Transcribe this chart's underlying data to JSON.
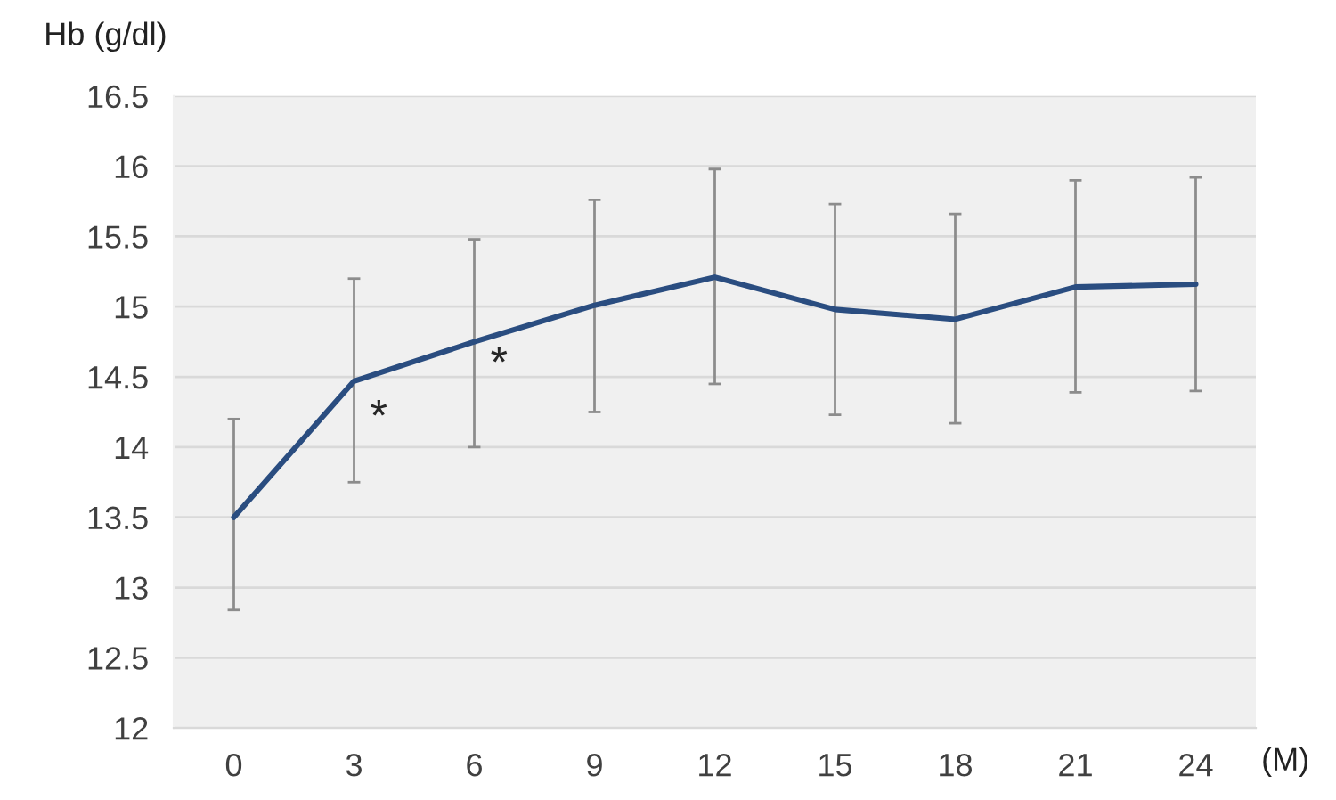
{
  "chart_data": {
    "type": "line",
    "ylabel": "Hb (g/dl)",
    "xlabel": "(M)",
    "categories": [
      "0",
      "3",
      "6",
      "9",
      "12",
      "15",
      "18",
      "21",
      "24"
    ],
    "series": [
      {
        "color": "#2a4d80",
        "values": [
          13.5,
          14.47,
          14.75,
          15.01,
          15.21,
          14.98,
          14.91,
          15.14,
          15.16
        ],
        "errors": [
          [
            12.84,
            14.2
          ],
          [
            13.75,
            15.2
          ],
          [
            14.0,
            15.48
          ],
          [
            14.25,
            15.76
          ],
          [
            14.45,
            15.98
          ],
          [
            14.23,
            15.73
          ],
          [
            14.17,
            15.66
          ],
          [
            14.39,
            15.9
          ],
          [
            14.4,
            15.92
          ]
        ]
      }
    ],
    "annotations": [
      {
        "text": "*",
        "x": "3",
        "y": 14.2
      },
      {
        "text": "*",
        "x": "6",
        "y": 14.58
      }
    ],
    "ylim": [
      12,
      16.5
    ],
    "yticks": [
      12,
      12.5,
      13,
      13.5,
      14,
      14.5,
      15,
      15.5,
      16,
      16.5
    ],
    "grid": "y",
    "marker": "none",
    "line_style": "solid",
    "legend": false
  }
}
